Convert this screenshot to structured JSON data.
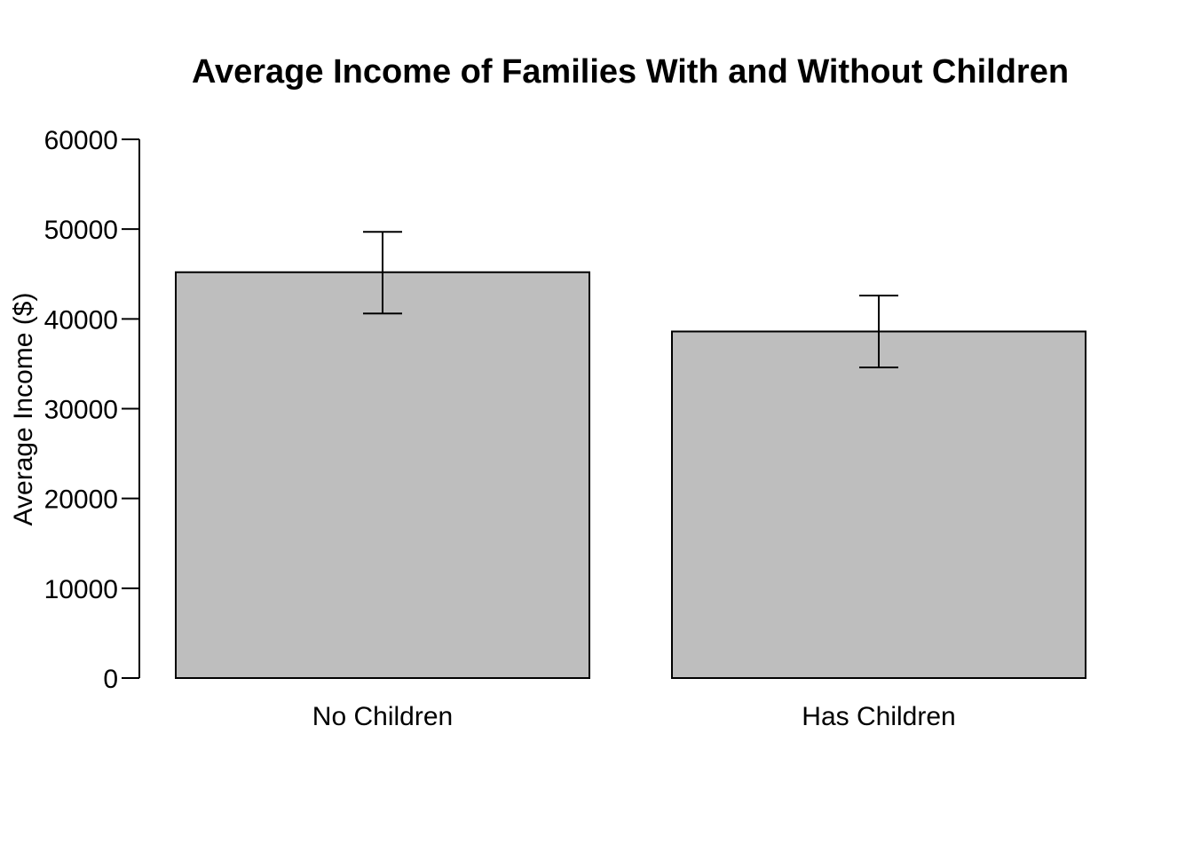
{
  "colors": {
    "bar_fill": "#bebebe",
    "bar_stroke": "#000000",
    "axis": "#000000",
    "background": "#ffffff"
  },
  "chart_data": {
    "type": "bar",
    "title": "Average Income of Families With and Without Children",
    "xlabel": "",
    "ylabel": "Average Income ($)",
    "categories": [
      "No Children",
      "Has Children"
    ],
    "values": [
      45200,
      38600
    ],
    "error_bars": [
      {
        "lower": 40600,
        "upper": 49700
      },
      {
        "lower": 34600,
        "upper": 42600
      }
    ],
    "ylim": [
      0,
      60000
    ],
    "yticks": [
      0,
      10000,
      20000,
      30000,
      40000,
      50000,
      60000
    ],
    "ytick_labels": [
      "0",
      "10000",
      "20000",
      "30000",
      "40000",
      "50000",
      "60000"
    ],
    "grid": false,
    "legend": "none"
  }
}
